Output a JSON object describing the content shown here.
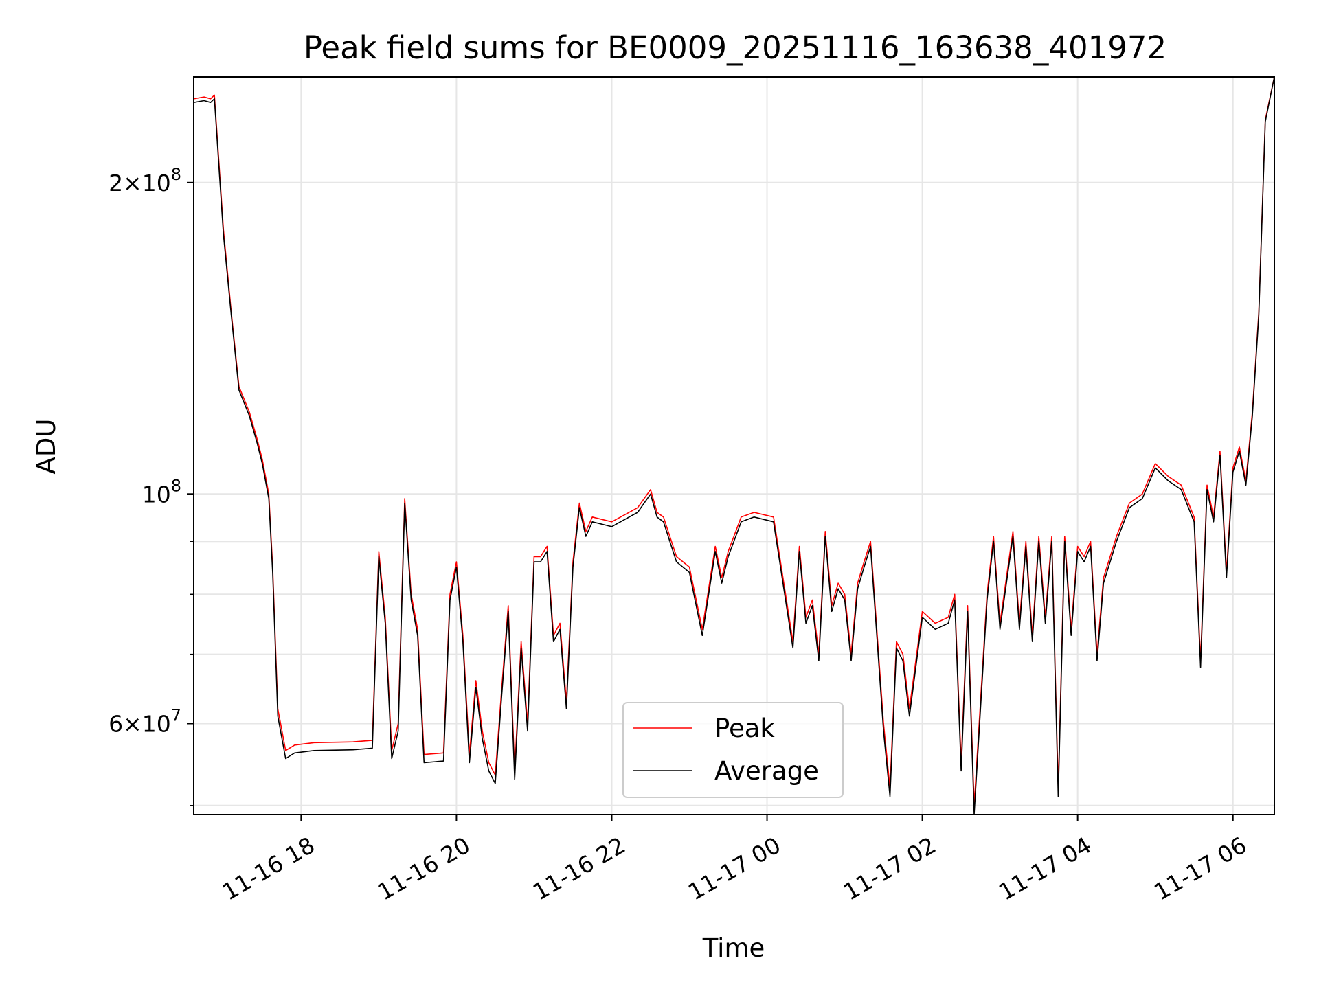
{
  "chart_data": {
    "type": "line",
    "title": "Peak field sums for BE0009_20251116_163638_401972",
    "xlabel": "Time",
    "ylabel": "ADU",
    "x_axis_type": "datetime",
    "y_scale": "log",
    "xlim": [
      "2025-11-16 16:37",
      "2025-11-17 06:32"
    ],
    "ylim": [
      49000000,
      253000000
    ],
    "x_ticks": [
      {
        "label": "11-16 18",
        "value": "2025-11-16 18:00"
      },
      {
        "label": "11-16 20",
        "value": "2025-11-16 20:00"
      },
      {
        "label": "11-16 22",
        "value": "2025-11-16 22:00"
      },
      {
        "label": "11-17 00",
        "value": "2025-11-17 00:00"
      },
      {
        "label": "11-17 02",
        "value": "2025-11-17 02:00"
      },
      {
        "label": "11-17 04",
        "value": "2025-11-17 04:00"
      },
      {
        "label": "11-17 06",
        "value": "2025-11-17 06:00"
      }
    ],
    "y_ticks": [
      {
        "base": "2",
        "exp": "8",
        "value": 200000000
      },
      {
        "base": "",
        "exp": "8",
        "value": 100000000
      },
      {
        "base": "6",
        "exp": "7",
        "value": 60000000
      }
    ],
    "y_minor_ticks": [
      50000000,
      70000000,
      80000000,
      90000000
    ],
    "grid": true,
    "legend_position": "lower-center",
    "series": [
      {
        "name": "Peak",
        "color": "#ff0000"
      },
      {
        "name": "Average",
        "color": "#000000"
      }
    ],
    "x": [
      "2025-11-16 16:37",
      "2025-11-16 16:45",
      "2025-11-16 16:50",
      "2025-11-16 16:53",
      "2025-11-16 17:00",
      "2025-11-16 17:06",
      "2025-11-16 17:12",
      "2025-11-16 17:20",
      "2025-11-16 17:26",
      "2025-11-16 17:30",
      "2025-11-16 17:35",
      "2025-11-16 17:38",
      "2025-11-16 17:42",
      "2025-11-16 17:48",
      "2025-11-16 17:55",
      "2025-11-16 18:10",
      "2025-11-16 18:40",
      "2025-11-16 18:55",
      "2025-11-16 19:00",
      "2025-11-16 19:05",
      "2025-11-16 19:10",
      "2025-11-16 19:15",
      "2025-11-16 19:20",
      "2025-11-16 19:25",
      "2025-11-16 19:30",
      "2025-11-16 19:35",
      "2025-11-16 19:50",
      "2025-11-16 19:55",
      "2025-11-16 20:00",
      "2025-11-16 20:05",
      "2025-11-16 20:10",
      "2025-11-16 20:15",
      "2025-11-16 20:20",
      "2025-11-16 20:25",
      "2025-11-16 20:30",
      "2025-11-16 20:35",
      "2025-11-16 20:40",
      "2025-11-16 20:45",
      "2025-11-16 20:50",
      "2025-11-16 20:55",
      "2025-11-16 21:00",
      "2025-11-16 21:05",
      "2025-11-16 21:10",
      "2025-11-16 21:15",
      "2025-11-16 21:20",
      "2025-11-16 21:25",
      "2025-11-16 21:30",
      "2025-11-16 21:35",
      "2025-11-16 21:40",
      "2025-11-16 21:45",
      "2025-11-16 22:00",
      "2025-11-16 22:20",
      "2025-11-16 22:30",
      "2025-11-16 22:35",
      "2025-11-16 22:40",
      "2025-11-16 22:50",
      "2025-11-16 23:00",
      "2025-11-16 23:10",
      "2025-11-16 23:20",
      "2025-11-16 23:25",
      "2025-11-16 23:30",
      "2025-11-16 23:40",
      "2025-11-16 23:50",
      "2025-11-17 00:05",
      "2025-11-17 00:20",
      "2025-11-17 00:25",
      "2025-11-17 00:30",
      "2025-11-17 00:35",
      "2025-11-17 00:40",
      "2025-11-17 00:45",
      "2025-11-17 00:50",
      "2025-11-17 00:55",
      "2025-11-17 01:00",
      "2025-11-17 01:05",
      "2025-11-17 01:10",
      "2025-11-17 01:15",
      "2025-11-17 01:20",
      "2025-11-17 01:30",
      "2025-11-17 01:35",
      "2025-11-17 01:40",
      "2025-11-17 01:45",
      "2025-11-17 01:50",
      "2025-11-17 02:00",
      "2025-11-17 02:10",
      "2025-11-17 02:20",
      "2025-11-17 02:25",
      "2025-11-17 02:30",
      "2025-11-17 02:35",
      "2025-11-17 02:40",
      "2025-11-17 02:50",
      "2025-11-17 02:55",
      "2025-11-17 03:00",
      "2025-11-17 03:10",
      "2025-11-17 03:15",
      "2025-11-17 03:20",
      "2025-11-17 03:25",
      "2025-11-17 03:30",
      "2025-11-17 03:35",
      "2025-11-17 03:40",
      "2025-11-17 03:45",
      "2025-11-17 03:50",
      "2025-11-17 03:55",
      "2025-11-17 04:00",
      "2025-11-17 04:05",
      "2025-11-17 04:10",
      "2025-11-17 04:15",
      "2025-11-17 04:20",
      "2025-11-17 04:30",
      "2025-11-17 04:40",
      "2025-11-17 04:50",
      "2025-11-17 05:00",
      "2025-11-17 05:10",
      "2025-11-17 05:20",
      "2025-11-17 05:30",
      "2025-11-17 05:35",
      "2025-11-17 05:40",
      "2025-11-17 05:45",
      "2025-11-17 05:50",
      "2025-11-17 05:55",
      "2025-11-17 06:00",
      "2025-11-17 06:05",
      "2025-11-17 06:10",
      "2025-11-17 06:15",
      "2025-11-17 06:20",
      "2025-11-17 06:25",
      "2025-11-17 06:32"
    ],
    "peak_values": [
      241000000,
      242000000,
      241000000,
      243000000,
      180000000,
      150000000,
      127000000,
      120000000,
      113000000,
      108000000,
      100000000,
      85000000,
      62000000,
      56500000,
      57200000,
      57500000,
      57600000,
      57800000,
      88000000,
      76000000,
      56500000,
      60000000,
      99000000,
      80000000,
      74000000,
      56000000,
      56200000,
      80000000,
      86000000,
      73000000,
      56000000,
      66000000,
      59000000,
      55000000,
      53500000,
      65000000,
      78000000,
      54000000,
      72000000,
      60000000,
      87000000,
      87000000,
      89000000,
      73000000,
      75000000,
      63000000,
      86000000,
      98000000,
      92000000,
      95000000,
      94000000,
      97000000,
      101000000,
      96000000,
      95000000,
      87000000,
      85000000,
      74000000,
      89000000,
      83000000,
      88000000,
      95000000,
      96000000,
      95000000,
      72000000,
      89000000,
      76000000,
      79000000,
      70000000,
      92000000,
      78000000,
      82000000,
      80000000,
      70000000,
      82000000,
      86000000,
      90000000,
      60000000,
      52000000,
      72000000,
      70000000,
      62000000,
      77000000,
      75000000,
      76000000,
      80000000,
      55000000,
      78000000,
      50000000,
      80000000,
      91000000,
      75000000,
      92000000,
      75000000,
      90000000,
      73000000,
      91000000,
      76000000,
      91000000,
      52000000,
      91000000,
      74000000,
      89000000,
      87000000,
      90000000,
      70000000,
      83000000,
      91000000,
      98000000,
      100000000,
      107000000,
      104000000,
      102000000,
      95000000,
      69000000,
      102000000,
      95000000,
      110000000,
      84000000,
      106000000,
      111000000,
      103000000,
      120000000,
      150000000,
      230000000,
      253000000,
      253000000
    ],
    "average_values": [
      239000000,
      240000000,
      239000000,
      241000000,
      178000000,
      149000000,
      126000000,
      119000000,
      112000000,
      107000000,
      99000000,
      84000000,
      61000000,
      55500000,
      56200000,
      56500000,
      56600000,
      56800000,
      87000000,
      75000000,
      55500000,
      59000000,
      98000000,
      79000000,
      73000000,
      55000000,
      55200000,
      79000000,
      85000000,
      72000000,
      55000000,
      65000000,
      58000000,
      54000000,
      52500000,
      64000000,
      77000000,
      53000000,
      71000000,
      59000000,
      86000000,
      86000000,
      88000000,
      72000000,
      74000000,
      62000000,
      85000000,
      97000000,
      91000000,
      94000000,
      93000000,
      96000000,
      100000000,
      95000000,
      94000000,
      86000000,
      84000000,
      73000000,
      88000000,
      82000000,
      87000000,
      94000000,
      95000000,
      94000000,
      71000000,
      88000000,
      75000000,
      78000000,
      69000000,
      91000000,
      77000000,
      81000000,
      79000000,
      69000000,
      81000000,
      85000000,
      89000000,
      59000000,
      51000000,
      71000000,
      69000000,
      61000000,
      76000000,
      74000000,
      75000000,
      79000000,
      54000000,
      77000000,
      49000000,
      79000000,
      90000000,
      74000000,
      91000000,
      74000000,
      89000000,
      72000000,
      90000000,
      75000000,
      90000000,
      51000000,
      90000000,
      73000000,
      88000000,
      86000000,
      89000000,
      69000000,
      82000000,
      90000000,
      97000000,
      99000000,
      106000000,
      103000000,
      101000000,
      94000000,
      68000000,
      101000000,
      94000000,
      109000000,
      83000000,
      105000000,
      110000000,
      102000000,
      119000000,
      149000000,
      229000000,
      253000000,
      253000000
    ]
  }
}
